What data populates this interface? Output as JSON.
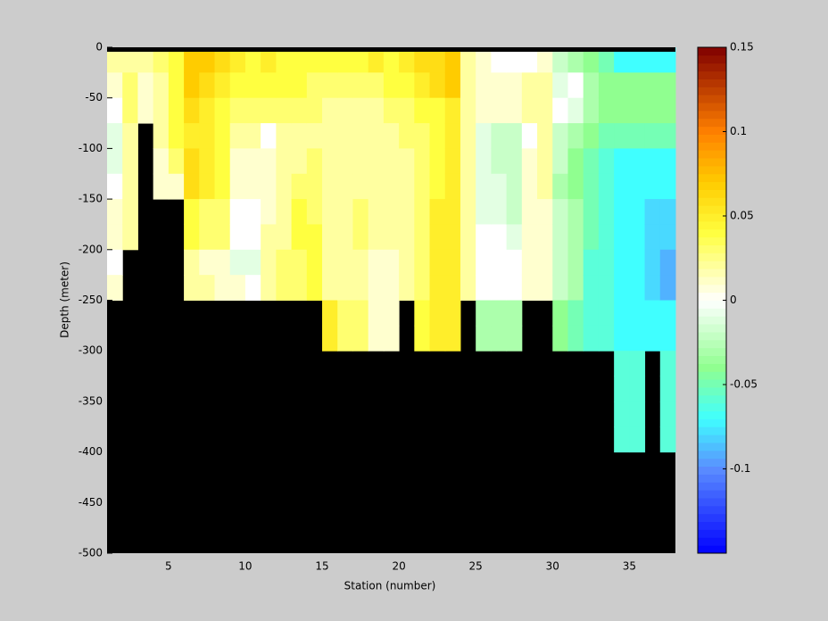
{
  "chart_data": {
    "type": "heatmap",
    "xlabel": "Station (number)",
    "ylabel": "Depth (meter)",
    "xlim": [
      1,
      38
    ],
    "ylim": [
      -500,
      0
    ],
    "xticks": [
      5,
      10,
      15,
      20,
      25,
      30,
      35
    ],
    "yticks": [
      0,
      -50,
      -100,
      -150,
      -200,
      -250,
      -300,
      -350,
      -400,
      -450,
      -500
    ],
    "clim": [
      -0.15,
      0.15
    ],
    "cticks": [
      0.15,
      0.1,
      0.05,
      0,
      -0.05,
      -0.1
    ],
    "missing_color": "#000000",
    "colormap": [
      {
        "value": -0.15,
        "color": "#0000ff"
      },
      {
        "value": -0.1,
        "color": "#5a8cff"
      },
      {
        "value": -0.07,
        "color": "#40ffff"
      },
      {
        "value": -0.04,
        "color": "#90ff90"
      },
      {
        "value": 0,
        "color": "#ffffff"
      },
      {
        "value": 0.04,
        "color": "#ffff40"
      },
      {
        "value": 0.07,
        "color": "#ffcc00"
      },
      {
        "value": 0.1,
        "color": "#ff8000"
      },
      {
        "value": 0.15,
        "color": "#800000"
      }
    ],
    "z": [
      [
        0.02,
        0.01,
        0,
        -0.01,
        -0.01,
        0,
        0.01,
        0.01,
        0,
        0.01,
        null,
        null,
        null,
        null,
        null,
        null,
        null,
        null,
        null,
        null
      ],
      [
        0.02,
        0.03,
        0.03,
        0.02,
        0.02,
        0.02,
        0.02,
        0.02,
        null,
        null,
        null,
        null,
        null,
        null,
        null,
        null,
        null,
        null,
        null,
        null
      ],
      [
        0.02,
        0.01,
        0.01,
        null,
        null,
        null,
        null,
        null,
        null,
        null,
        null,
        null,
        null,
        null,
        null,
        null,
        null,
        null,
        null,
        null
      ],
      [
        0.03,
        0.02,
        0.02,
        0.02,
        0.01,
        0.01,
        null,
        null,
        null,
        null,
        null,
        null,
        null,
        null,
        null,
        null,
        null,
        null,
        null,
        null
      ],
      [
        0.04,
        0.04,
        0.04,
        0.04,
        0.03,
        0.01,
        null,
        null,
        null,
        null,
        null,
        null,
        null,
        null,
        null,
        null,
        null,
        null,
        null,
        null
      ],
      [
        0.07,
        0.07,
        0.06,
        0.05,
        0.06,
        0.06,
        0.04,
        0.04,
        0.02,
        0.02,
        null,
        null,
        null,
        null,
        null,
        null,
        null,
        null,
        null,
        null
      ],
      [
        0.07,
        0.06,
        0.05,
        0.05,
        0.05,
        0.05,
        0.03,
        0.03,
        0.01,
        0.02,
        null,
        null,
        null,
        null,
        null,
        null,
        null,
        null,
        null,
        null
      ],
      [
        0.06,
        0.05,
        0.04,
        0.04,
        0.04,
        0.04,
        0.03,
        0.03,
        0.01,
        0.01,
        null,
        null,
        null,
        null,
        null,
        null,
        null,
        null,
        null,
        null
      ],
      [
        0.05,
        0.04,
        0.03,
        0.02,
        0.01,
        0.01,
        0,
        0,
        -0.01,
        0.01,
        null,
        null,
        null,
        null,
        null,
        null,
        null,
        null,
        null,
        null
      ],
      [
        0.04,
        0.04,
        0.03,
        0.02,
        0.01,
        0.01,
        0,
        0,
        -0.01,
        0,
        null,
        null,
        null,
        null,
        null,
        null,
        null,
        null,
        null,
        null
      ],
      [
        0.05,
        0.04,
        0.03,
        0,
        0.01,
        0.01,
        0.01,
        0.02,
        0.02,
        0.02,
        null,
        null,
        null,
        null,
        null,
        null,
        null,
        null,
        null,
        null
      ],
      [
        0.04,
        0.04,
        0.03,
        0.02,
        0.02,
        0.02,
        0.02,
        0.02,
        0.03,
        0.03,
        null,
        null,
        null,
        null,
        null,
        null,
        null,
        null,
        null,
        null
      ],
      [
        0.04,
        0.04,
        0.03,
        0.02,
        0.02,
        0.03,
        0.04,
        0.04,
        0.03,
        0.03,
        null,
        null,
        null,
        null,
        null,
        null,
        null,
        null,
        null,
        null
      ],
      [
        0.04,
        0.03,
        0.03,
        0.02,
        0.03,
        0.03,
        0.03,
        0.04,
        0.04,
        0.04,
        null,
        null,
        null,
        null,
        null,
        null,
        null,
        null,
        null,
        null
      ],
      [
        0.04,
        0.03,
        0.02,
        0.02,
        0.02,
        0.02,
        0.02,
        0.02,
        0.02,
        0.02,
        0.05,
        0.05,
        null,
        null,
        null,
        null,
        null,
        null,
        null,
        null
      ],
      [
        0.04,
        0.03,
        0.02,
        0.02,
        0.02,
        0.02,
        0.02,
        0.02,
        0.02,
        0.02,
        0.03,
        0.03,
        null,
        null,
        null,
        null,
        null,
        null,
        null,
        null
      ],
      [
        0.04,
        0.03,
        0.02,
        0.02,
        0.02,
        0.02,
        0.03,
        0.03,
        0.02,
        0.02,
        0.03,
        0.03,
        null,
        null,
        null,
        null,
        null,
        null,
        null,
        null
      ],
      [
        0.05,
        0.03,
        0.02,
        0.02,
        0.02,
        0.02,
        0.02,
        0.02,
        0.01,
        0.01,
        0.01,
        0.01,
        null,
        null,
        null,
        null,
        null,
        null,
        null,
        null
      ],
      [
        0.04,
        0.04,
        0.03,
        0.02,
        0.02,
        0.02,
        0.02,
        0.02,
        0.01,
        0.01,
        0.01,
        0.01,
        null,
        null,
        null,
        null,
        null,
        null,
        null,
        null
      ],
      [
        0.05,
        0.04,
        0.03,
        0.03,
        0.02,
        0.02,
        0.02,
        0.02,
        0.02,
        0.02,
        null,
        null,
        null,
        null,
        null,
        null,
        null,
        null,
        null,
        null
      ],
      [
        0.06,
        0.05,
        0.04,
        0.03,
        0.03,
        0.03,
        0.03,
        0.03,
        0.03,
        0.03,
        0.04,
        0.04,
        null,
        null,
        null,
        null,
        null,
        null,
        null,
        null
      ],
      [
        0.06,
        0.06,
        0.04,
        0.04,
        0.04,
        0.04,
        0.05,
        0.05,
        0.05,
        0.05,
        0.05,
        0.05,
        null,
        null,
        null,
        null,
        null,
        null,
        null,
        null
      ],
      [
        0.07,
        0.07,
        0.05,
        0.05,
        0.05,
        0.05,
        0.05,
        0.05,
        0.05,
        0.05,
        0.05,
        0.05,
        null,
        null,
        null,
        null,
        null,
        null,
        null,
        null
      ],
      [
        0.02,
        0.02,
        0.02,
        0.02,
        0.02,
        0.02,
        0.02,
        0.02,
        0.02,
        0.02,
        null,
        null,
        null,
        null,
        null,
        null,
        null,
        null,
        null,
        null
      ],
      [
        0.01,
        0.01,
        0.01,
        -0.01,
        -0.01,
        -0.01,
        -0.01,
        0,
        0,
        0,
        -0.03,
        -0.03,
        null,
        null,
        null,
        null,
        null,
        null,
        null,
        null
      ],
      [
        0,
        0.01,
        0.01,
        -0.02,
        -0.02,
        -0.01,
        -0.01,
        0,
        0,
        0,
        -0.03,
        -0.03,
        null,
        null,
        null,
        null,
        null,
        null,
        null,
        null
      ],
      [
        0,
        0.01,
        0.01,
        -0.02,
        -0.02,
        -0.02,
        -0.02,
        -0.01,
        0,
        0,
        -0.03,
        -0.03,
        null,
        null,
        null,
        null,
        null,
        null,
        null,
        null
      ],
      [
        0,
        0.02,
        0.02,
        0,
        0.01,
        0.01,
        0.01,
        0.01,
        0.01,
        0.01,
        null,
        null,
        null,
        null,
        null,
        null,
        null,
        null,
        null,
        null
      ],
      [
        0.01,
        0.02,
        0.02,
        0.02,
        0.02,
        0.02,
        0.01,
        0.01,
        0.01,
        0.01,
        null,
        null,
        null,
        null,
        null,
        null,
        null,
        null,
        null,
        null
      ],
      [
        -0.02,
        -0.01,
        0,
        -0.02,
        -0.02,
        -0.03,
        -0.02,
        -0.02,
        -0.02,
        -0.02,
        -0.04,
        -0.04,
        null,
        null,
        null,
        null,
        null,
        null,
        null,
        null
      ],
      [
        -0.03,
        0,
        -0.01,
        -0.03,
        -0.04,
        -0.04,
        -0.03,
        -0.03,
        -0.03,
        -0.03,
        -0.05,
        -0.05,
        null,
        null,
        null,
        null,
        null,
        null,
        null,
        null
      ],
      [
        -0.04,
        -0.03,
        -0.03,
        -0.04,
        -0.05,
        -0.05,
        -0.05,
        -0.05,
        -0.06,
        -0.06,
        -0.06,
        -0.06,
        null,
        null,
        null,
        null,
        null,
        null,
        null,
        null
      ],
      [
        -0.05,
        -0.04,
        -0.04,
        -0.05,
        -0.06,
        -0.06,
        -0.06,
        -0.06,
        -0.06,
        -0.06,
        -0.06,
        -0.06,
        null,
        null,
        null,
        null,
        null,
        null,
        null,
        null
      ],
      [
        -0.07,
        -0.04,
        -0.04,
        -0.05,
        -0.07,
        -0.07,
        -0.07,
        -0.07,
        -0.07,
        -0.07,
        -0.07,
        -0.07,
        -0.06,
        -0.06,
        -0.06,
        -0.06,
        null,
        null,
        null,
        null
      ],
      [
        -0.07,
        -0.04,
        -0.04,
        -0.05,
        -0.07,
        -0.07,
        -0.07,
        -0.07,
        -0.07,
        -0.07,
        -0.07,
        -0.07,
        -0.06,
        -0.06,
        -0.06,
        -0.06,
        null,
        null,
        null,
        null
      ],
      [
        -0.07,
        -0.04,
        -0.04,
        -0.05,
        -0.07,
        -0.07,
        -0.08,
        -0.08,
        -0.08,
        -0.08,
        -0.07,
        -0.07,
        null,
        null,
        null,
        null,
        null,
        null,
        null,
        null
      ],
      [
        -0.07,
        -0.04,
        -0.04,
        -0.05,
        -0.07,
        -0.07,
        -0.08,
        -0.08,
        -0.09,
        -0.09,
        -0.07,
        -0.07,
        -0.06,
        -0.06,
        -0.06,
        -0.06,
        null,
        null,
        null,
        null
      ]
    ]
  }
}
